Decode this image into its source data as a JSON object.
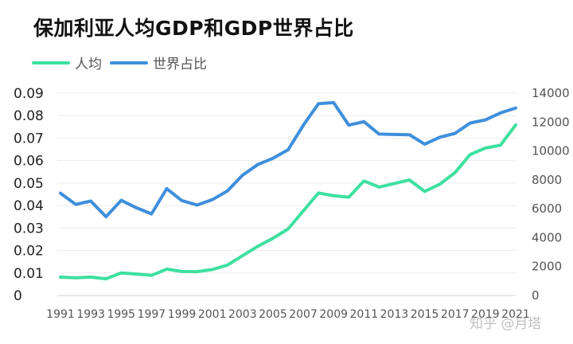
{
  "chart_data": {
    "type": "line",
    "title": "保加利亚人均GDP和GDP世界占比",
    "legend_position": "top-left",
    "grid": true,
    "x": [
      1991,
      1992,
      1993,
      1994,
      1995,
      1996,
      1997,
      1998,
      1999,
      2000,
      2001,
      2002,
      2003,
      2004,
      2005,
      2006,
      2007,
      2008,
      2009,
      2010,
      2011,
      2012,
      2013,
      2014,
      2015,
      2016,
      2017,
      2018,
      2019,
      2020,
      2021
    ],
    "x_tick_labels": [
      "1991",
      "1993",
      "1995",
      "1997",
      "1999",
      "2001",
      "2003",
      "2005",
      "2007",
      "2009",
      "2011",
      "2013",
      "2015",
      "2017",
      "2019",
      "2021"
    ],
    "left_axis": {
      "ylim": [
        0,
        0.09
      ],
      "ticks": [
        "0",
        "0.01",
        "0.02",
        "0.03",
        "0.04",
        "0.05",
        "0.06",
        "0.07",
        "0.08",
        "0.09"
      ]
    },
    "right_axis": {
      "ylim": [
        0,
        14000
      ],
      "ticks": [
        "0",
        "2000",
        "4000",
        "6000",
        "8000",
        "10000",
        "12000",
        "14000"
      ]
    },
    "series": [
      {
        "name": "人均",
        "color": "#3ee0a0",
        "axis": "right",
        "values": [
          1270,
          1220,
          1270,
          1150,
          1560,
          1480,
          1390,
          1820,
          1660,
          1650,
          1790,
          2100,
          2750,
          3400,
          3950,
          4600,
          5850,
          7090,
          6900,
          6800,
          7920,
          7500,
          7750,
          7990,
          7200,
          7700,
          8500,
          9750,
          10200,
          10400,
          11800
        ]
      },
      {
        "name": "世界占比",
        "color": "#3f8fdc",
        "axis": "left",
        "values": [
          0.0455,
          0.0405,
          0.042,
          0.035,
          0.0423,
          0.039,
          0.0363,
          0.0475,
          0.0422,
          0.0402,
          0.0426,
          0.0465,
          0.0535,
          0.0582,
          0.061,
          0.0648,
          0.0757,
          0.0853,
          0.0858,
          0.0758,
          0.0773,
          0.0718,
          0.0716,
          0.0715,
          0.0673,
          0.0704,
          0.0721,
          0.0767,
          0.0781,
          0.0812,
          0.0834
        ]
      }
    ]
  },
  "watermark": "知乎 @月塔"
}
